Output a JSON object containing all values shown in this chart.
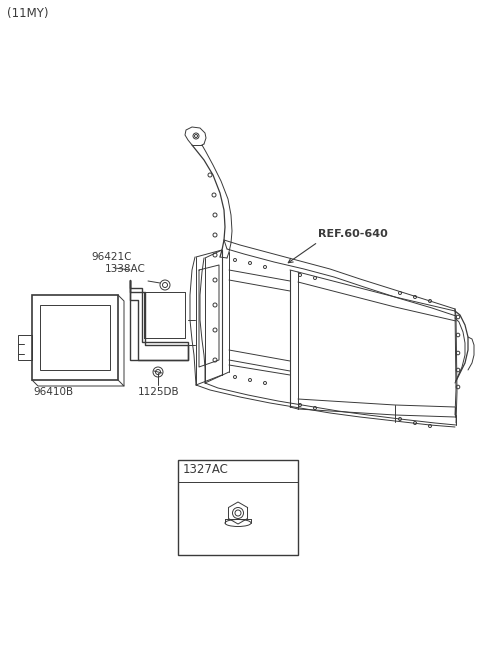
{
  "title_text": "(11MY)",
  "background_color": "#ffffff",
  "line_color": "#3a3a3a",
  "label_96421C": "96421C",
  "label_1338AC": "1338AC",
  "label_96410B": "96410B",
  "label_1125DB": "1125DB",
  "label_REF": "REF.60-640",
  "label_1327AC": "1327AC",
  "fig_w": 4.8,
  "fig_h": 6.55,
  "dpi": 100
}
